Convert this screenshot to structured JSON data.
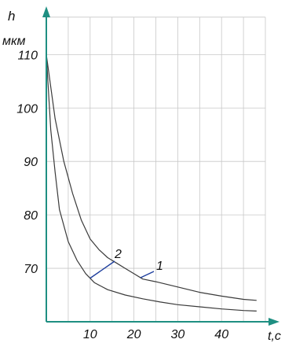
{
  "chart_data": {
    "type": "line",
    "ylabel": "h",
    "yunit": "мкм",
    "xlabel": "t,c",
    "xlim": [
      0,
      50
    ],
    "ylim": [
      60,
      118
    ],
    "xticks": [
      10,
      20,
      30,
      40
    ],
    "yticks": [
      70,
      80,
      90,
      100,
      110
    ],
    "grid": true,
    "series": [
      {
        "name": "1",
        "x": [
          0,
          2,
          4,
          6,
          8,
          10,
          12,
          14,
          16,
          18,
          20,
          22,
          25,
          30,
          35,
          40,
          45,
          48
        ],
        "y": [
          110,
          98,
          90,
          84,
          79,
          75.5,
          73.5,
          72,
          71,
          70,
          69,
          68,
          67.5,
          66.5,
          65.5,
          64.8,
          64.2,
          64
        ]
      },
      {
        "name": "2",
        "x": [
          0,
          1,
          2,
          3,
          5,
          7,
          9,
          11,
          14,
          18,
          22,
          26,
          30,
          35,
          40,
          45,
          48
        ],
        "y": [
          110,
          96,
          88,
          81,
          75,
          71.5,
          69,
          67.3,
          66,
          65,
          64.3,
          63.7,
          63.2,
          62.8,
          62.4,
          62.1,
          62
        ]
      }
    ],
    "annotations": [
      {
        "label": "1",
        "series": "1"
      },
      {
        "label": "2",
        "series": "2"
      }
    ],
    "colors": {
      "curve": "#3a3a3a",
      "axis": "#1f8f82",
      "grid": "#c8c8c8",
      "leader": "#1f3f9e"
    }
  }
}
